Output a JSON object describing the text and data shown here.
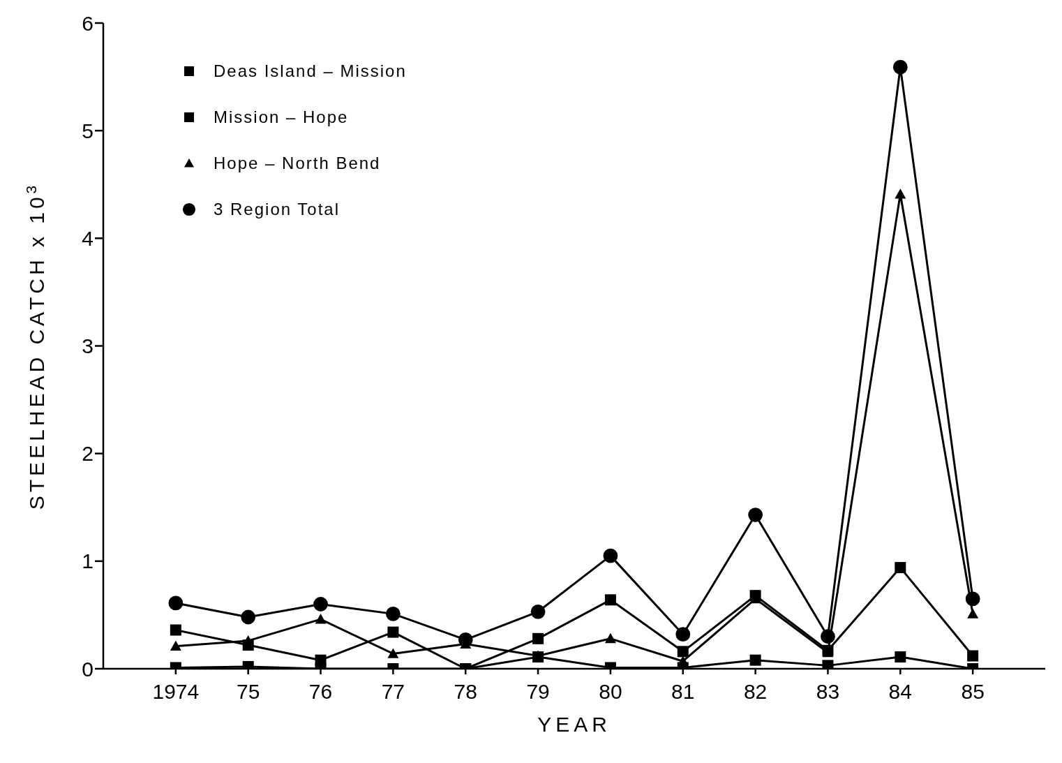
{
  "chart_data": {
    "type": "line",
    "xlabel": "YEAR",
    "ylabel": "STEELHEAD CATCH x 10$^{3}$",
    "categories": [
      "1974",
      "75",
      "76",
      "77",
      "78",
      "79",
      "80",
      "81",
      "82",
      "83",
      "84",
      "85"
    ],
    "series": [
      {
        "name": "Deas Island – Mission",
        "color": "#000000",
        "marker": "square",
        "values": [
          0.01,
          0.02,
          0,
          0,
          0,
          0.11,
          0.01,
          0.01,
          0.08,
          0.03,
          0.11,
          0
        ]
      },
      {
        "name": "Mission – Hope",
        "color": "#000000",
        "marker": "square",
        "values": [
          0.36,
          0.22,
          0.08,
          0.34,
          0,
          0.28,
          0.64,
          0.16,
          0.68,
          0.17,
          0.94,
          0.12
        ]
      },
      {
        "name": "Hope – North Bend",
        "color": "#000000",
        "marker": "triangle",
        "values": [
          0.21,
          0.26,
          0.46,
          0.14,
          0.23,
          0.12,
          0.28,
          0.07,
          0.65,
          0.15,
          4.41,
          0.51
        ]
      },
      {
        "name": "3 Region Total",
        "color": "#000000",
        "marker": "circle",
        "values": [
          0.61,
          0.48,
          0.6,
          0.51,
          0.27,
          0.53,
          1.05,
          0.32,
          1.43,
          0.3,
          5.59,
          0.65
        ]
      }
    ],
    "ylim": [
      0,
      6
    ],
    "yticks": [
      0,
      1,
      2,
      3,
      4,
      5,
      6
    ],
    "grid": false,
    "legend": "top left",
    "line_style": "solid"
  }
}
